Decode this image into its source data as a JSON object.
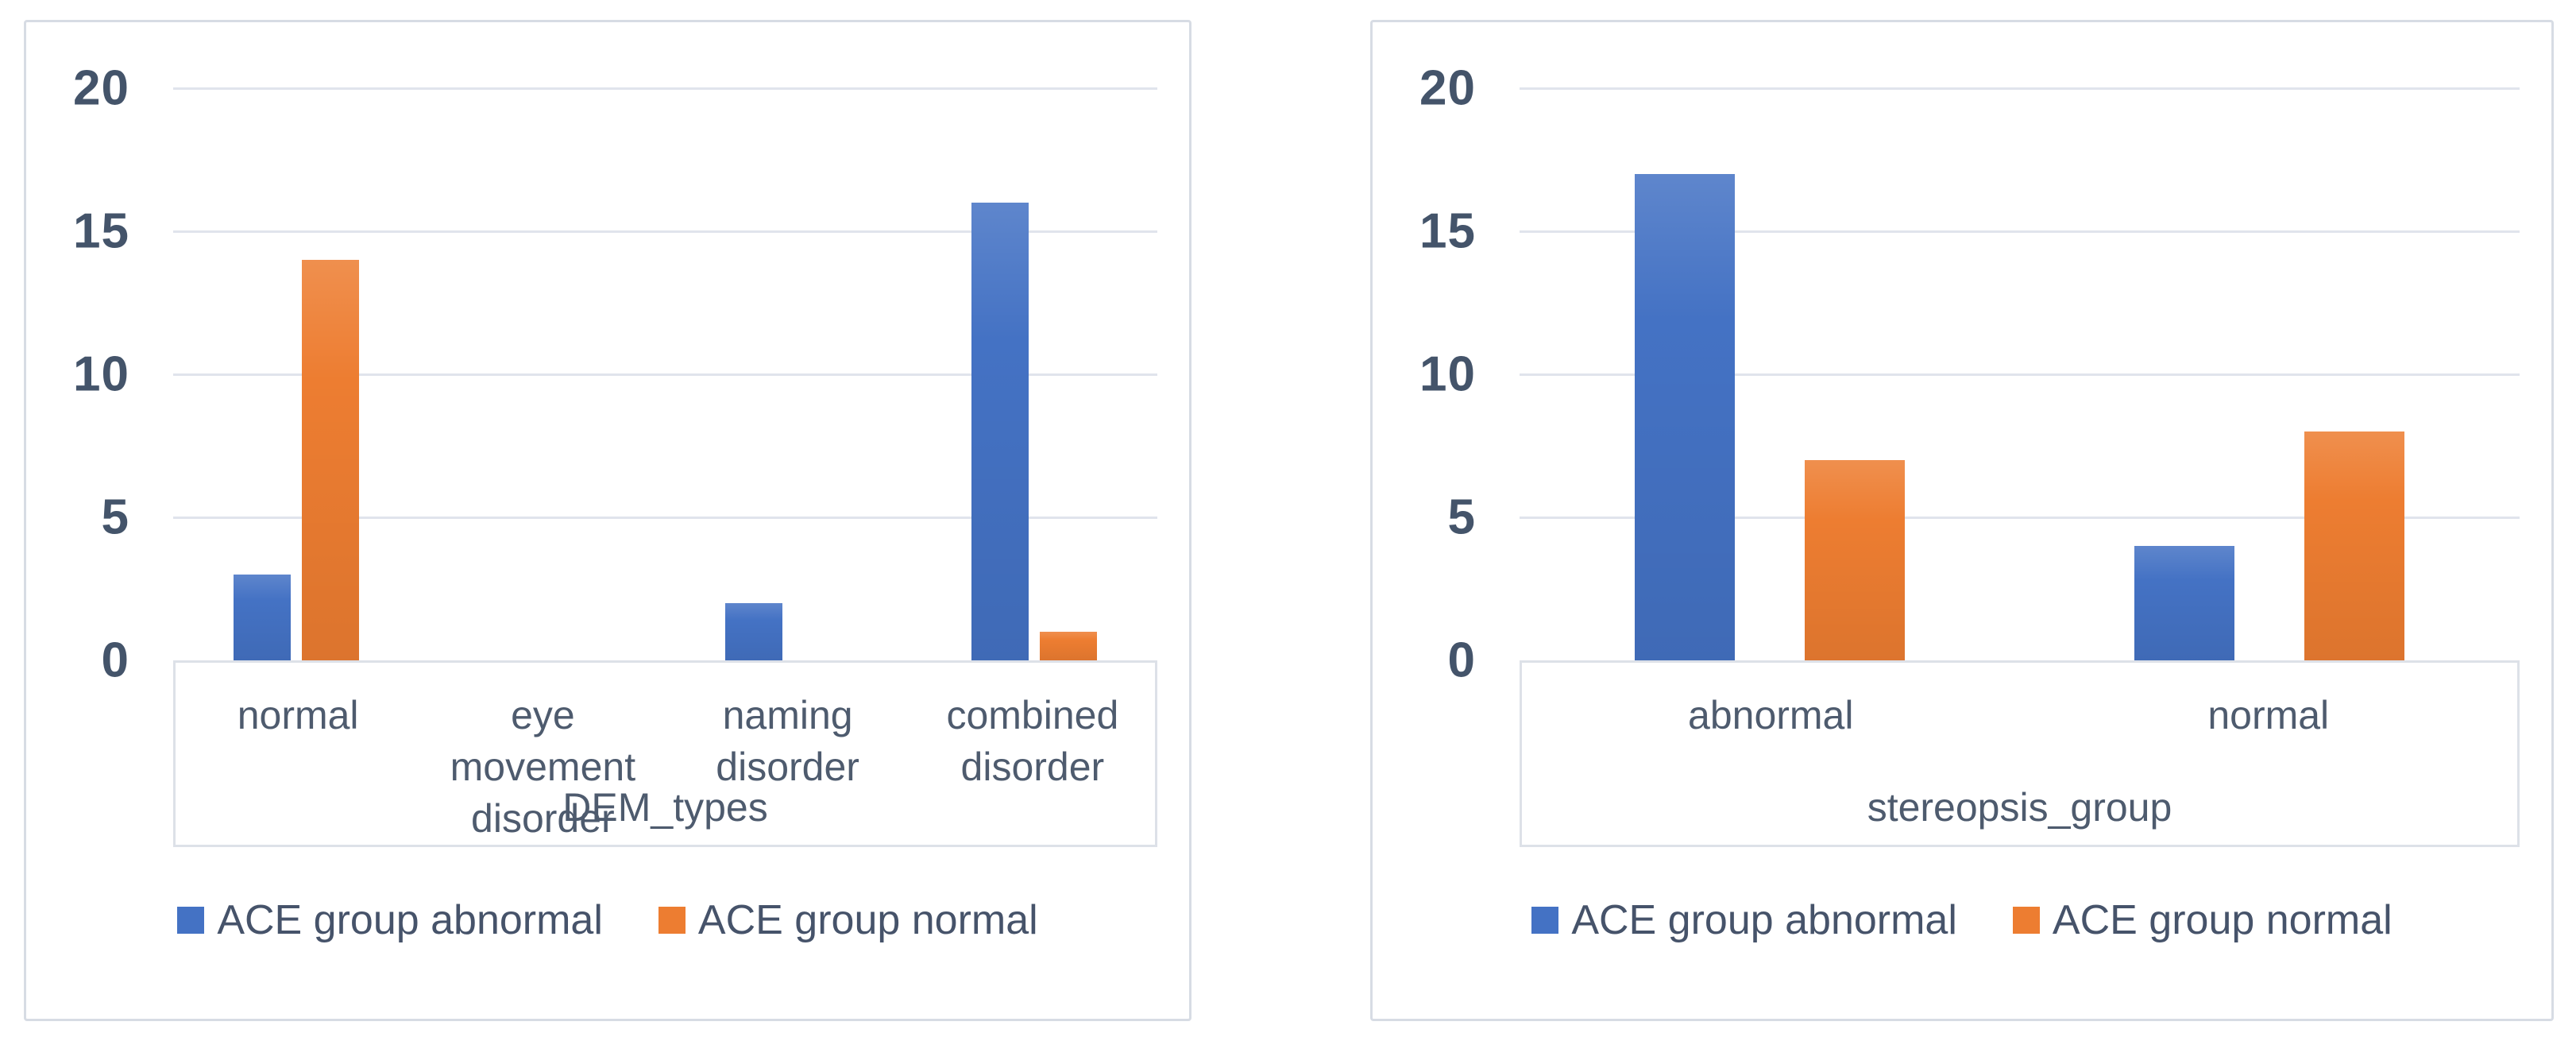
{
  "colors": {
    "series_blue": "#4472C4",
    "series_orange": "#ED7D31",
    "gridline": "#e0e4ec",
    "tick_text": "#44546A",
    "label_text": "#4e5b6e",
    "card_border": "#d7dce4"
  },
  "chart_data": [
    {
      "type": "bar",
      "title": "",
      "categories": [
        "normal",
        "eye movement disorder",
        "naming disorder",
        "combined disorder"
      ],
      "category_labels_wrapped": [
        "normal",
        "eye movement\ndisorder",
        "naming disorder",
        "combined\ndisorder"
      ],
      "series": [
        {
          "name": "ACE group abnormal",
          "color": "#4472C4",
          "values": [
            3,
            0,
            2,
            16
          ]
        },
        {
          "name": "ACE group normal",
          "color": "#ED7D31",
          "values": [
            14,
            0,
            0,
            1
          ]
        }
      ],
      "xlabel": "DEM_types",
      "ylabel": "",
      "ylim": [
        0,
        20
      ],
      "yticks": [
        0,
        5,
        10,
        15,
        20
      ],
      "grid": true,
      "legend_position": "bottom"
    },
    {
      "type": "bar",
      "title": "",
      "categories": [
        "abnormal",
        "normal"
      ],
      "category_labels_wrapped": [
        "abnormal",
        "normal"
      ],
      "series": [
        {
          "name": "ACE group abnormal",
          "color": "#4472C4",
          "values": [
            17,
            4
          ]
        },
        {
          "name": "ACE group normal",
          "color": "#ED7D31",
          "values": [
            7,
            8
          ]
        }
      ],
      "xlabel": "stereopsis_group",
      "ylabel": "",
      "ylim": [
        0,
        20
      ],
      "yticks": [
        0,
        5,
        10,
        15,
        20
      ],
      "grid": true,
      "legend_position": "bottom"
    }
  ]
}
